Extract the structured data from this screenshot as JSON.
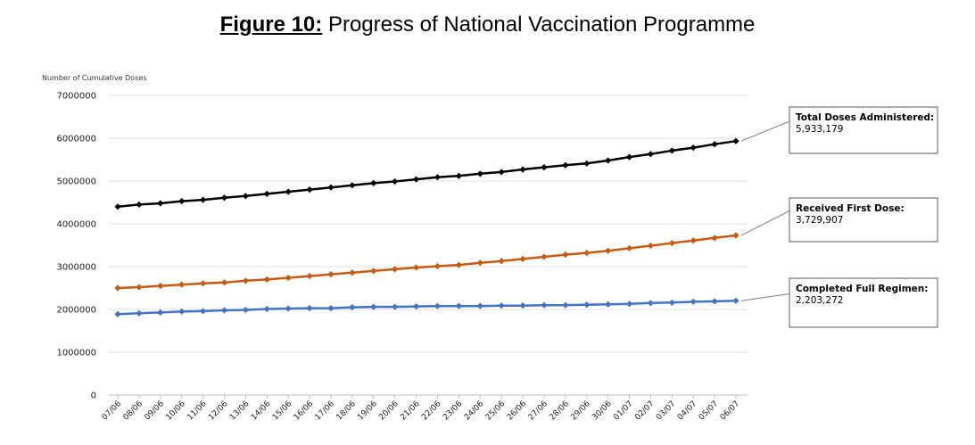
{
  "figure": {
    "label": "Figure 10:",
    "title": "Progress of National Vaccination Programme"
  },
  "chart_data": {
    "type": "line",
    "title": "Progress of National Vaccination Programme",
    "ylabel": "Number of Cumulative Doses",
    "xlabel": "",
    "ylim": [
      0,
      7000000
    ],
    "yticks": [
      0,
      1000000,
      2000000,
      3000000,
      4000000,
      5000000,
      6000000,
      7000000
    ],
    "ytick_labels": [
      "0",
      "1000000",
      "2000000",
      "3000000",
      "4000000",
      "5000000",
      "6000000",
      "7000000"
    ],
    "grid": true,
    "categories": [
      "07/06",
      "08/06",
      "09/06",
      "10/06",
      "11/06",
      "12/06",
      "13/06",
      "14/06",
      "15/06",
      "16/06",
      "17/06",
      "18/06",
      "19/06",
      "20/06",
      "21/06",
      "22/06",
      "23/06",
      "24/06",
      "25/06",
      "26/06",
      "27/06",
      "28/06",
      "29/06",
      "30/06",
      "01/07",
      "02/07",
      "03/07",
      "04/07",
      "05/07",
      "06/07"
    ],
    "series": [
      {
        "name": "Total Doses Administered",
        "color": "#000000",
        "values": [
          4400000,
          4450000,
          4480000,
          4530000,
          4560000,
          4610000,
          4650000,
          4700000,
          4750000,
          4800000,
          4850000,
          4900000,
          4950000,
          4990000,
          5040000,
          5090000,
          5120000,
          5170000,
          5210000,
          5270000,
          5320000,
          5370000,
          5410000,
          5480000,
          5560000,
          5630000,
          5710000,
          5780000,
          5860000,
          5933179
        ]
      },
      {
        "name": "Received First Dose",
        "color": "#c55a11",
        "values": [
          2500000,
          2520000,
          2550000,
          2580000,
          2610000,
          2630000,
          2670000,
          2700000,
          2740000,
          2780000,
          2820000,
          2860000,
          2900000,
          2940000,
          2980000,
          3010000,
          3040000,
          3090000,
          3130000,
          3180000,
          3230000,
          3280000,
          3320000,
          3370000,
          3430000,
          3490000,
          3550000,
          3610000,
          3670000,
          3729907
        ]
      },
      {
        "name": "Completed Full Regimen",
        "color": "#4472c4",
        "values": [
          1890000,
          1910000,
          1930000,
          1950000,
          1960000,
          1980000,
          1990000,
          2010000,
          2020000,
          2030000,
          2030000,
          2050000,
          2060000,
          2060000,
          2070000,
          2080000,
          2080000,
          2080000,
          2090000,
          2090000,
          2100000,
          2100000,
          2110000,
          2120000,
          2130000,
          2150000,
          2160000,
          2180000,
          2190000,
          2203272
        ]
      }
    ]
  },
  "callouts": [
    {
      "series": "Total Doses Administered",
      "title": "Total Doses Administered:",
      "value": "5,933,179"
    },
    {
      "series": "Received First Dose",
      "title": "Received First Dose:",
      "value": "3,729,907"
    },
    {
      "series": "Completed Full Regimen",
      "title": "Completed Full Regimen:",
      "value": "2,203,272"
    }
  ]
}
